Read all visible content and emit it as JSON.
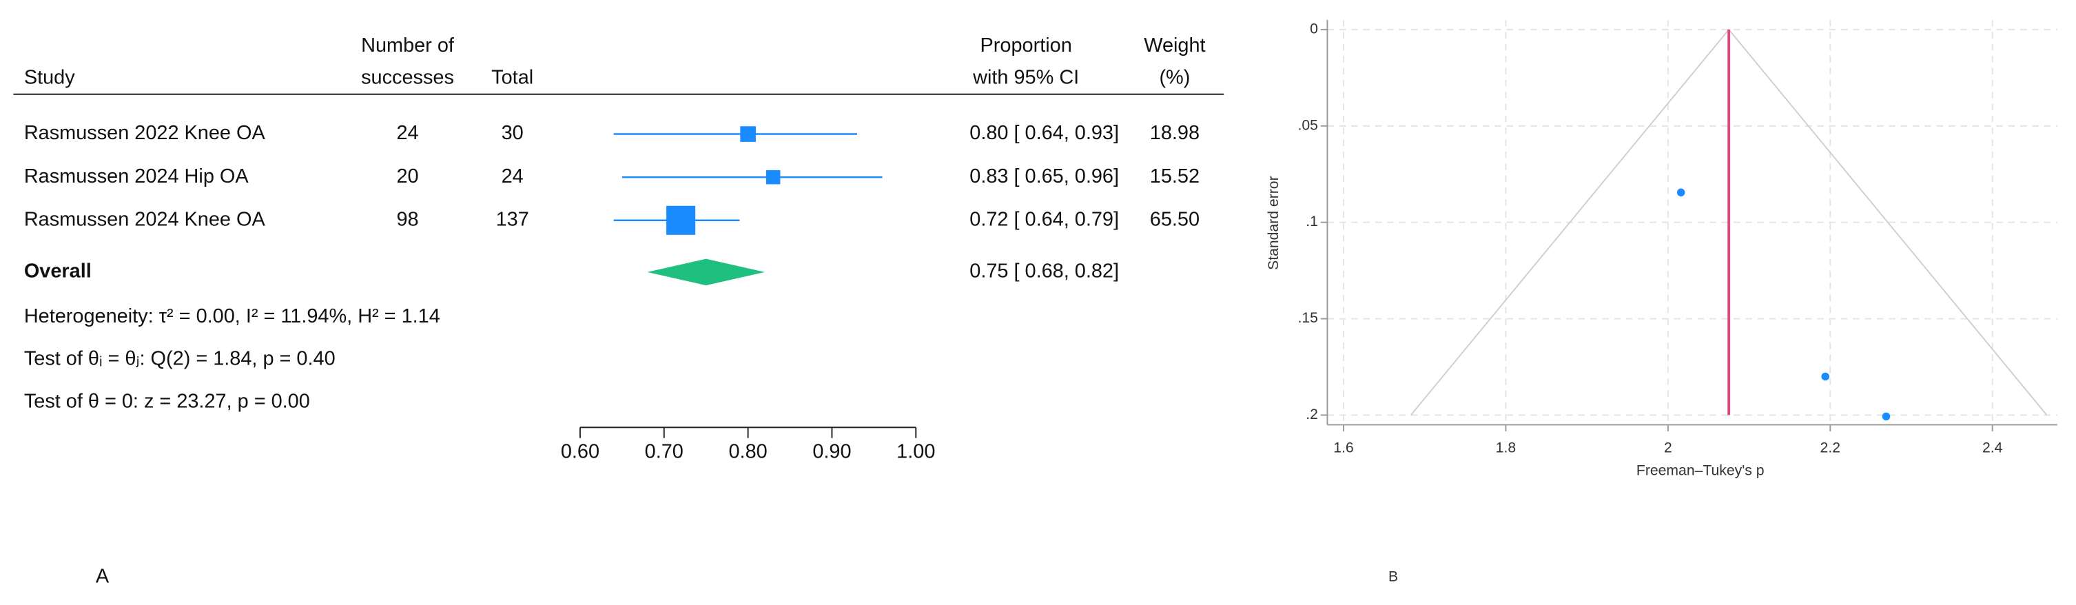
{
  "chart_data": [
    {
      "type": "forest",
      "panel_label": "A",
      "headers": {
        "study": "Study",
        "successes": [
          "Number of",
          "successes"
        ],
        "total": "Total",
        "estimate": [
          "Proportion",
          "with 95% CI"
        ],
        "weight": [
          "Weight",
          "(%)"
        ]
      },
      "categories": [
        "Rasmussen 2022 Knee OA",
        "Rasmussen 2024 Hip OA",
        "Rasmussen 2024 Knee OA"
      ],
      "successes": [
        24,
        20,
        98
      ],
      "totals": [
        30,
        24,
        137
      ],
      "values": [
        0.8,
        0.83,
        0.72
      ],
      "ci_low": [
        0.64,
        0.65,
        0.64
      ],
      "ci_high": [
        0.93,
        0.96,
        0.79
      ],
      "value_labels": [
        "0.80 [ 0.64,  0.93]",
        "0.83 [ 0.65,  0.96]",
        "0.72 [ 0.64,  0.79]"
      ],
      "weights": [
        18.98,
        15.52,
        65.5
      ],
      "weight_labels": [
        "18.98",
        "15.52",
        "65.50"
      ],
      "overall": {
        "label": "Overall",
        "value": 0.75,
        "ci_low": 0.68,
        "ci_high": 0.82,
        "value_label": "0.75 [ 0.68,  0.82]"
      },
      "annotations": [
        "Heterogeneity: τ² = 0.00, I² = 11.94%, H² = 1.14",
        "Test of θᵢ = θⱼ: Q(2) = 1.84, p = 0.40",
        "Test of θ = 0: z = 23.27, p = 0.00"
      ],
      "xlim": [
        0.6,
        1.0
      ],
      "xticks": [
        {
          "value": 0.6,
          "label": "0.60"
        },
        {
          "value": 0.7,
          "label": "0.70"
        },
        {
          "value": 0.8,
          "label": "0.80"
        },
        {
          "value": 0.9,
          "label": "0.90"
        },
        {
          "value": 1,
          "label": "1.00"
        }
      ],
      "marker_color": "#1a8cff",
      "diamond_color": "#1fbf7f"
    },
    {
      "type": "funnel",
      "panel_label": "B",
      "xlabel": "Freeman–Tukey's p",
      "ylabel": "Standard error",
      "x": [
        2.016,
        2.194,
        2.269
      ],
      "y": [
        0.0845,
        0.18,
        0.2007
      ],
      "reference_line": 2.075,
      "xlim": [
        1.58,
        2.48
      ],
      "ylim": [
        -0.005,
        0.205
      ],
      "y_reversed": true,
      "xticks": [
        1.6,
        1.8,
        2,
        2.2,
        2.4
      ],
      "yticks": [
        0,
        {
          "value": 0.05,
          "label": ".05"
        },
        {
          "value": 0.1,
          "label": ".1"
        },
        {
          "value": 0.15,
          "label": ".15"
        },
        {
          "value": 0.2,
          "label": ".2"
        }
      ],
      "grid": true,
      "color": "#1a8cff",
      "reference_color": "#e8457a"
    }
  ]
}
